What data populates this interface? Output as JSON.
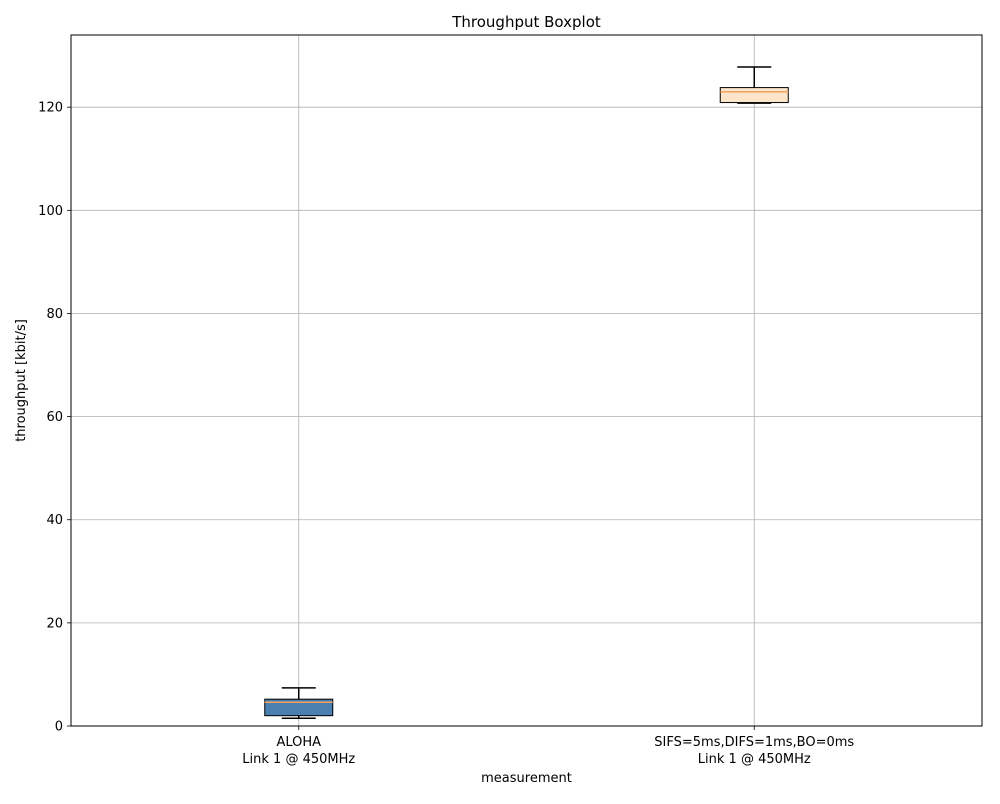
{
  "chart_data": {
    "type": "boxplot",
    "title": "Throughput Boxplot",
    "xlabel": "measurement",
    "ylabel": "throughput [kbit/s]",
    "ylim": [
      0,
      134
    ],
    "yticks": [
      0,
      20,
      40,
      60,
      80,
      100,
      120
    ],
    "grid": true,
    "categories": [
      [
        "ALOHA",
        "Link 1 @ 450MHz"
      ],
      [
        "SIFS=5ms,DIFS=1ms,BO=0ms",
        "Link 1 @ 450MHz"
      ]
    ],
    "boxes": [
      {
        "whisker_low": 1.5,
        "q1": 2.0,
        "median": 4.6,
        "q3": 5.2,
        "whisker_high": 7.4,
        "fill": "#4a7fb0",
        "median_color": "#f5a25d"
      },
      {
        "whisker_low": 120.8,
        "q1": 120.9,
        "median": 123.0,
        "q3": 123.8,
        "whisker_high": 127.8,
        "fill": "#fde5cc",
        "median_color": "#f5a25d"
      }
    ]
  }
}
